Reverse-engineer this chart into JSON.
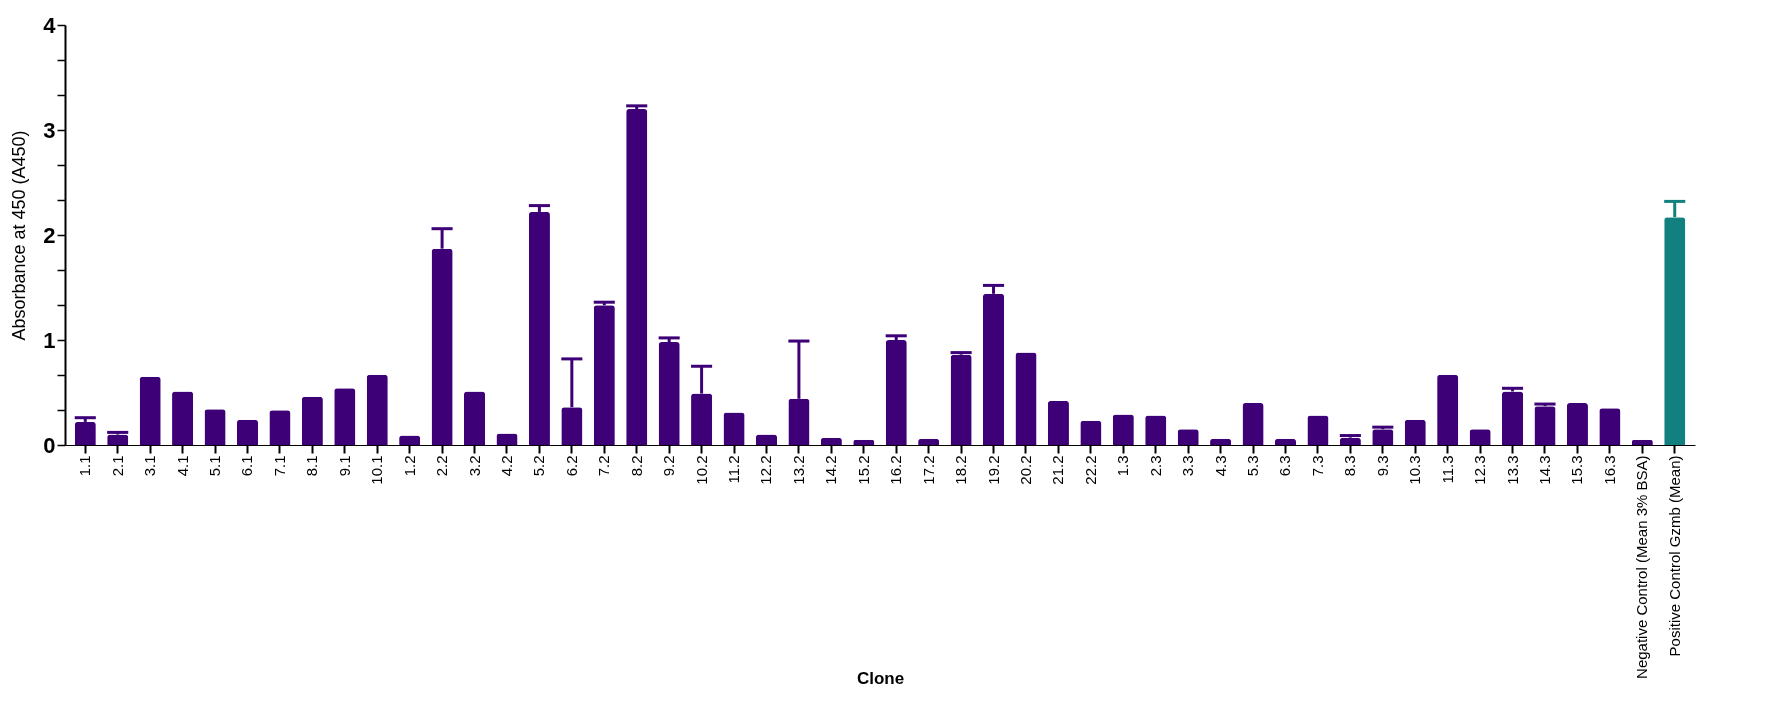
{
  "chart_data": {
    "type": "bar",
    "xlabel": "Clone",
    "ylabel": "Absorbance at 450 (A450)",
    "categories": [
      "1.1",
      "2.1",
      "3.1",
      "4.1",
      "5.1",
      "6.1",
      "7.1",
      "8.1",
      "9.1",
      "10.1",
      "1.2",
      "2.2",
      "3.2",
      "4.2",
      "5.2",
      "6.2",
      "7.2",
      "8.2",
      "9.2",
      "10.2",
      "11.2",
      "12.2",
      "13.2",
      "14.2",
      "15.2",
      "16.2",
      "17.2",
      "18.2",
      "19.2",
      "20.2",
      "21.2",
      "22.2",
      "1.3",
      "2.3",
      "3.3",
      "4.3",
      "5.3",
      "6.3",
      "7.3",
      "8.3",
      "9.3",
      "10.3",
      "11.3",
      "12.3",
      "13.3",
      "14.3",
      "15.3",
      "16.3",
      "Negative Control (Mean 3% BSA)",
      "Positive Control Gzmb (Mean)"
    ],
    "values": [
      0.22,
      0.1,
      0.65,
      0.51,
      0.34,
      0.24,
      0.33,
      0.46,
      0.54,
      0.67,
      0.09,
      1.87,
      0.51,
      0.11,
      2.22,
      0.36,
      1.33,
      3.2,
      0.98,
      0.49,
      0.31,
      0.1,
      0.44,
      0.07,
      0.05,
      1.0,
      0.06,
      0.86,
      1.44,
      0.88,
      0.42,
      0.23,
      0.29,
      0.28,
      0.15,
      0.06,
      0.4,
      0.06,
      0.28,
      0.07,
      0.15,
      0.24,
      0.67,
      0.15,
      0.51,
      0.37,
      0.4,
      0.35,
      0.05,
      2.17
    ],
    "errors": [
      [
        0.22,
        0.26
      ],
      [
        0.1,
        0.12
      ],
      null,
      null,
      null,
      null,
      null,
      null,
      null,
      null,
      null,
      [
        1.87,
        2.06
      ],
      null,
      null,
      [
        2.22,
        2.28
      ],
      [
        0.36,
        0.82
      ],
      [
        1.33,
        1.36
      ],
      [
        3.2,
        3.23
      ],
      [
        0.98,
        1.02
      ],
      [
        0.49,
        0.75
      ],
      null,
      null,
      [
        0.44,
        0.99
      ],
      null,
      null,
      [
        1.0,
        1.04
      ],
      null,
      [
        0.86,
        0.88
      ],
      [
        1.44,
        1.52
      ],
      null,
      null,
      null,
      null,
      null,
      null,
      null,
      null,
      null,
      null,
      [
        0.07,
        0.09
      ],
      [
        0.15,
        0.17
      ],
      null,
      null,
      null,
      [
        0.51,
        0.54
      ],
      [
        0.37,
        0.39
      ],
      null,
      null,
      null,
      [
        2.17,
        2.32
      ]
    ],
    "colors": [
      "#3d0077",
      "#3d0077",
      "#3d0077",
      "#3d0077",
      "#3d0077",
      "#3d0077",
      "#3d0077",
      "#3d0077",
      "#3d0077",
      "#3d0077",
      "#3d0077",
      "#3d0077",
      "#3d0077",
      "#3d0077",
      "#3d0077",
      "#3d0077",
      "#3d0077",
      "#3d0077",
      "#3d0077",
      "#3d0077",
      "#3d0077",
      "#3d0077",
      "#3d0077",
      "#3d0077",
      "#3d0077",
      "#3d0077",
      "#3d0077",
      "#3d0077",
      "#3d0077",
      "#3d0077",
      "#3d0077",
      "#3d0077",
      "#3d0077",
      "#3d0077",
      "#3d0077",
      "#3d0077",
      "#3d0077",
      "#3d0077",
      "#3d0077",
      "#3d0077",
      "#3d0077",
      "#3d0077",
      "#3d0077",
      "#3d0077",
      "#3d0077",
      "#3d0077",
      "#3d0077",
      "#3d0077",
      "#3d0077",
      "#138080"
    ],
    "ylim": [
      0,
      4
    ],
    "yticks": [
      0,
      {
        "value": 0.333,
        "label": null
      },
      {
        "value": 0.667,
        "label": null
      },
      1,
      {
        "value": 1.333,
        "label": null
      },
      {
        "value": 1.667,
        "label": null
      },
      2,
      {
        "value": 2.333,
        "label": null
      },
      {
        "value": 2.667,
        "label": null
      },
      3,
      {
        "value": 3.333,
        "label": null
      },
      {
        "value": 3.667,
        "label": null
      },
      4
    ],
    "grid": false
  }
}
